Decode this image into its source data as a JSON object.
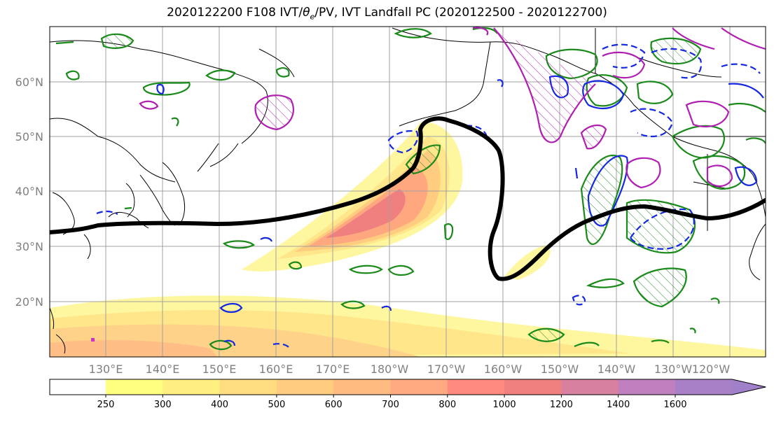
{
  "title_pre": "2020122200 F108 IVT/",
  "title_theta": "θ",
  "title_sub": "e",
  "title_post": "/PV, IVT Landfall PC (2020122500 - 2020122700)",
  "map": {
    "lat_labels": [
      "60°N",
      "50°N",
      "40°N",
      "30°N",
      "20°N"
    ],
    "lon_labels": [
      "130°E",
      "140°E",
      "150°E",
      "160°E",
      "170°E",
      "180°W",
      "170°W",
      "160°W",
      "150°W",
      "140°W",
      "130°W",
      "120°W"
    ]
  },
  "colorbar": {
    "levels": [
      "250",
      "300",
      "400",
      "500",
      "600",
      "700",
      "800",
      "1000",
      "1200",
      "1400",
      "1600"
    ],
    "colors": [
      "#ffff80",
      "#ffee80",
      "#ffdd80",
      "#ffcc80",
      "#ffbb80",
      "#ffaa80",
      "#ff8a80",
      "#f08080",
      "#d880a0",
      "#c080c0",
      "#a880c8",
      "#a080c8"
    ]
  }
}
